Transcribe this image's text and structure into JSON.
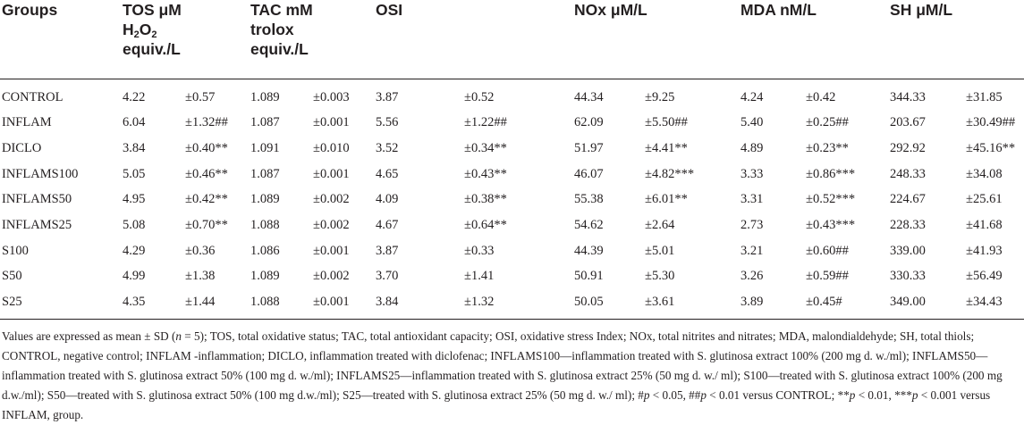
{
  "headers": [
    "Groups",
    "TOS μM H2O2 equiv./L",
    "TAC mM trolox equiv./L",
    "OSI",
    "NOx μM/L",
    "MDA nM/L",
    "SH μM/L"
  ],
  "header_parts": {
    "tos_line1": "TOS μM",
    "tos_h": "H",
    "tos_sub": "2",
    "tos_o": "O",
    "tos_sub2": "2",
    "tos_line3": "equiv./L",
    "tac_line1": "TAC mM",
    "tac_line2": "trolox",
    "tac_line3": "equiv./L"
  },
  "rows": [
    {
      "group": "CONTROL",
      "cells": [
        "4.22",
        "±0.57",
        "1.089",
        "±0.003",
        "3.87",
        "±0.52",
        "44.34",
        "±9.25",
        "4.24",
        "±0.42",
        "344.33",
        "±31.85"
      ]
    },
    {
      "group": "INFLAM",
      "cells": [
        "6.04",
        "±1.32##",
        "1.087",
        "±0.001",
        "5.56",
        "±1.22##",
        "62.09",
        "±5.50##",
        "5.40",
        "±0.25##",
        "203.67",
        "±30.49##"
      ]
    },
    {
      "group": "DICLO",
      "cells": [
        "3.84",
        "±0.40**",
        "1.091",
        "±0.010",
        "3.52",
        "±0.34**",
        "51.97",
        "±4.41**",
        "4.89",
        "±0.23**",
        "292.92",
        "±45.16**"
      ]
    },
    {
      "group": "INFLAMS100",
      "cells": [
        "5.05",
        "±0.46**",
        "1.087",
        "±0.001",
        "4.65",
        "±0.43**",
        "46.07",
        "±4.82***",
        "3.33",
        "±0.86***",
        "248.33",
        "±34.08"
      ]
    },
    {
      "group": "INFLAMS50",
      "cells": [
        "4.95",
        "±0.42**",
        "1.089",
        "±0.002",
        "4.09",
        "±0.38**",
        "55.38",
        "±6.01**",
        "3.31",
        "±0.52***",
        "224.67",
        "±25.61"
      ]
    },
    {
      "group": "INFLAMS25",
      "cells": [
        "5.08",
        "±0.70**",
        "1.088",
        "±0.002",
        "4.67",
        "±0.64**",
        "54.62",
        "±2.64",
        "2.73",
        "±0.43***",
        "228.33",
        "±41.68"
      ]
    },
    {
      "group": "S100",
      "cells": [
        "4.29",
        "±0.36",
        "1.086",
        "±0.001",
        "3.87",
        "±0.33",
        "44.39",
        "±5.01",
        "3.21",
        "±0.60##",
        "339.00",
        "±41.93"
      ]
    },
    {
      "group": "S50",
      "cells": [
        "4.99",
        "±1.38",
        "1.089",
        "±0.002",
        "3.70",
        "±1.41",
        "50.91",
        "±5.30",
        "3.26",
        "±0.59##",
        "330.33",
        "±56.49"
      ]
    },
    {
      "group": "S25",
      "cells": [
        "4.35",
        "±1.44",
        "1.088",
        "±0.001",
        "3.84",
        "±1.32",
        "50.05",
        "±3.61",
        "3.89",
        "±0.45#",
        "349.00",
        "±34.43"
      ]
    }
  ],
  "footnote": {
    "part1": "Values are expressed as mean ± SD (",
    "n": "n",
    "part2": " = 5); TOS, total oxidative status; TAC, total antioxidant capacity; OSI, oxidative stress Index; NOx, total nitrites and nitrates; MDA, malondialdehyde; SH, total thiols; CONTROL, negative control; INFLAM -inflammation; DICLO, inflammation treated with diclofenac; INFLAMS100—inflammation treated with S. glutinosa extract 100% (200 mg d. w./ml); INFLAMS50—inflammation treated with S. glutinosa extract 50% (100 mg d. w./ml); INFLAMS25—inflammation treated with S. glutinosa extract 25% (50 mg d. w./ ml); S100—treated with S. glutinosa extract 100% (200 mg d.w./ml); S50—treated with S. glutinosa extract 50% (100 mg d.w./ml); S25—treated with S. glutinosa extract 25% (50 mg d. w./ ml); #",
    "p1": "p",
    "part3": " ˂ 0.05, ##",
    "p2": "p",
    "part4": " ˂ 0.01 versus CONTROL; **",
    "p3": "p",
    "part5": " ˂ 0.01, ***",
    "p4": "p",
    "part6": " ˂ 0.001 versus INFLAM, group."
  }
}
